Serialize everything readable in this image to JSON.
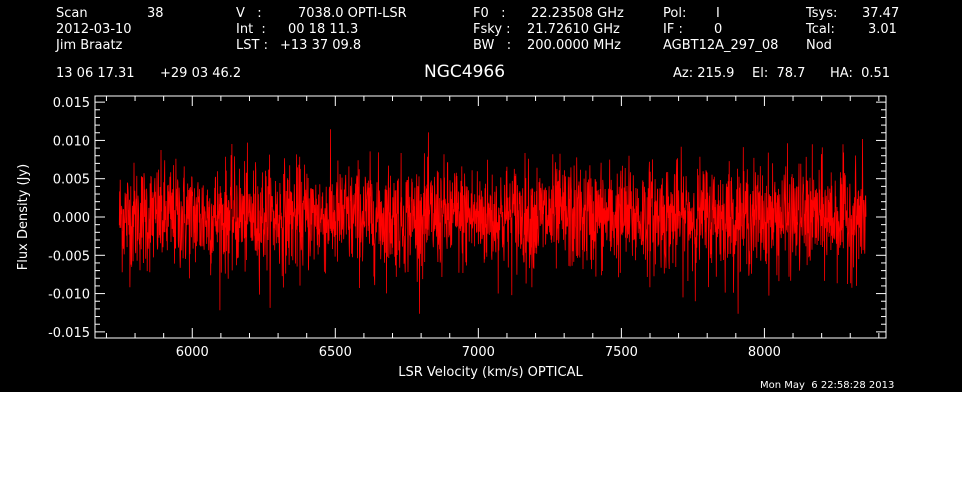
{
  "header": {
    "col1": {
      "scan_label": "Scan",
      "scan_value": "38",
      "date": "2012-03-10",
      "observer": "Jim Braatz",
      "ra": "13 06 17.31",
      "dec": "+29 03 46.2"
    },
    "col2": {
      "v_label": "V   :",
      "v_value": "7038.0 OPTI-LSR",
      "int_label": "Int  :",
      "int_value": "00 18 11.3",
      "lst_label": "LST :",
      "lst_value": "+13 37 09.8"
    },
    "col3": {
      "f0_label": "F0   :",
      "f0_value": "22.23508 GHz",
      "fsky_label": "Fsky :",
      "fsky_value": "21.72610 GHz",
      "bw_label": "BW   :",
      "bw_value": "200.0000 MHz"
    },
    "col4": {
      "pol_label": "Pol:",
      "pol_value": "I",
      "if_label": "IF :",
      "if_value": "0",
      "project": "AGBT12A_297_08"
    },
    "col5": {
      "tsys_label": "Tsys:",
      "tsys_value": "37.47",
      "tcal_label": "Tcal:",
      "tcal_value": "3.01",
      "mode": "Nod"
    },
    "source": "NGC4966",
    "az": "Az: 215.9",
    "el": "El:  78.7",
    "ha": "HA:  0.51"
  },
  "footer": {
    "date": "Mon May  6 22:58:28 2013"
  },
  "colors": {
    "background": "#000000",
    "axes": "#ffffff",
    "trace": "#ff0000"
  },
  "chart_data": {
    "type": "line",
    "xlabel": "LSR Velocity (km/s) OPTICAL",
    "ylabel": "Flux Density (Jy)",
    "xlim": [
      5660,
      8425
    ],
    "ylim": [
      -0.0158,
      0.0158
    ],
    "xticks": [
      6000,
      6500,
      7000,
      7500,
      8000
    ],
    "xtick_labels": [
      "6000",
      "6500",
      "7000",
      "7500",
      "8000"
    ],
    "yticks": [
      -0.015,
      -0.01,
      -0.005,
      0.0,
      0.005,
      0.01,
      0.015
    ],
    "ytick_labels": [
      "-0.015",
      "-0.010",
      "-0.005",
      "0.000",
      "0.005",
      "0.010",
      "0.015"
    ],
    "series": [
      {
        "x_start": 5745,
        "x_end": 8355,
        "envelope_sigma": 0.0035,
        "mean": 0.0
      }
    ]
  }
}
